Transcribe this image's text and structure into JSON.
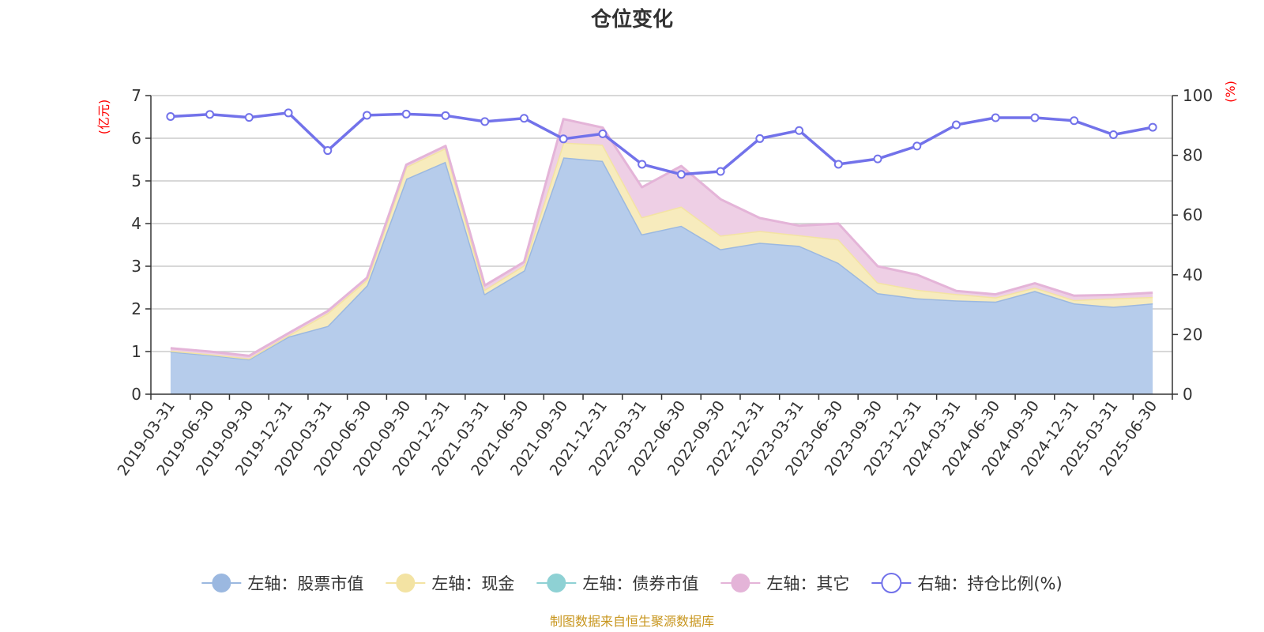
{
  "chart_data": {
    "type": "area",
    "title": "仓位变化",
    "y_left_unit": "(亿元)",
    "y_right_unit": "(%)",
    "y_left_range": [
      0,
      7
    ],
    "y_left_ticks": [
      "0",
      "1",
      "2",
      "3",
      "4",
      "5",
      "6",
      "7"
    ],
    "y_right_range": [
      0,
      100
    ],
    "y_right_ticks": [
      "0",
      "20",
      "40",
      "60",
      "80",
      "100"
    ],
    "x_categories": [
      "2019-03-31",
      "2019-06-30",
      "2019-09-30",
      "2019-12-31",
      "2020-03-31",
      "2020-06-30",
      "2020-09-30",
      "2020-12-31",
      "2021-03-31",
      "2021-06-30",
      "2021-09-30",
      "2021-12-31",
      "2022-03-31",
      "2022-06-30",
      "2022-09-30",
      "2022-12-31",
      "2023-03-31",
      "2023-06-30",
      "2023-09-30",
      "2023-12-31",
      "2024-03-31",
      "2024-06-30",
      "2024-09-30",
      "2024-12-31",
      "2025-03-31",
      "2025-06-30"
    ],
    "series": [
      {
        "name": "左轴：股票市值",
        "axis": "left",
        "kind": "stacked-area",
        "color": "#9bb8e0",
        "fill": "#b6cceb",
        "values": [
          1.0,
          0.92,
          0.82,
          1.35,
          1.6,
          2.55,
          5.05,
          5.45,
          2.35,
          2.9,
          5.55,
          5.47,
          3.75,
          3.95,
          3.4,
          3.55,
          3.48,
          3.08,
          2.37,
          2.25,
          2.2,
          2.17,
          2.42,
          2.13,
          2.05,
          2.13
        ]
      },
      {
        "name": "左轴：现金",
        "axis": "left",
        "kind": "stacked-area",
        "color": "#f3e3a3",
        "fill": "#f7ebbd",
        "values": [
          0.02,
          0.02,
          0.02,
          0.03,
          0.3,
          0.13,
          0.28,
          0.32,
          0.1,
          0.12,
          0.35,
          0.38,
          0.4,
          0.45,
          0.32,
          0.28,
          0.25,
          0.55,
          0.25,
          0.2,
          0.15,
          0.1,
          0.08,
          0.08,
          0.2,
          0.15
        ]
      },
      {
        "name": "左轴：债券市值",
        "axis": "left",
        "kind": "stacked-area",
        "color": "#8ed1d4",
        "fill": "#b3e1e3",
        "values": [
          0,
          0,
          0,
          0,
          0,
          0,
          0,
          0,
          0,
          0,
          0,
          0,
          0,
          0,
          0,
          0,
          0,
          0,
          0,
          0,
          0,
          0,
          0,
          0,
          0,
          0
        ]
      },
      {
        "name": "左轴：其它",
        "axis": "left",
        "kind": "stacked-area",
        "color": "#e4b4d8",
        "fill": "#eecfe5",
        "values": [
          0.06,
          0.06,
          0.06,
          0.05,
          0.05,
          0.05,
          0.05,
          0.05,
          0.1,
          0.08,
          0.55,
          0.4,
          0.7,
          0.95,
          0.85,
          0.3,
          0.22,
          0.37,
          0.38,
          0.35,
          0.07,
          0.07,
          0.1,
          0.1,
          0.08,
          0.1
        ]
      },
      {
        "name": "右轴：持仓比例(%)",
        "axis": "right",
        "kind": "line",
        "color": "#7272ea",
        "values": [
          93,
          93.7,
          92.7,
          94.2,
          81.6,
          93.4,
          93.8,
          93.3,
          91.3,
          92.4,
          85.5,
          87.2,
          77,
          73.6,
          74.6,
          85.6,
          88.3,
          77,
          78.8,
          83.1,
          90.2,
          92.6,
          92.6,
          91.6,
          86.9,
          89.4
        ]
      }
    ],
    "legend_position": "bottom-center",
    "grid": true
  },
  "footer": {
    "source": "制图数据来自恒生聚源数据库"
  }
}
